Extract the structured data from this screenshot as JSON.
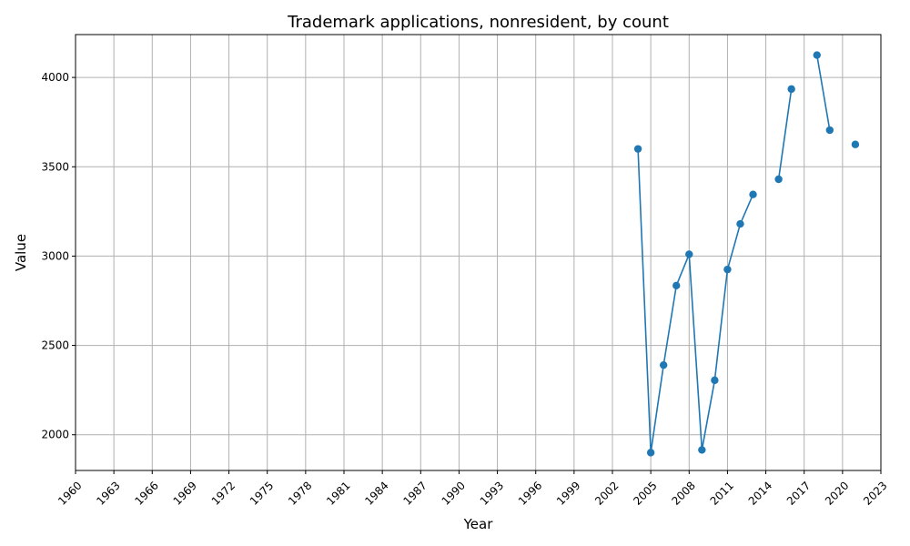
{
  "chart_data": {
    "type": "line",
    "title": "Trademark applications, nonresident, by count",
    "xlabel": "Year",
    "ylabel": "Value",
    "xlim": [
      1960,
      2023
    ],
    "ylim": [
      1800,
      4240
    ],
    "xticks": [
      1960,
      1963,
      1966,
      1969,
      1972,
      1975,
      1978,
      1981,
      1984,
      1987,
      1990,
      1993,
      1996,
      1999,
      2002,
      2005,
      2008,
      2011,
      2014,
      2017,
      2020,
      2023
    ],
    "yticks": [
      2000,
      2500,
      3000,
      3500,
      4000
    ],
    "grid": true,
    "color": "#1f77b4",
    "segments": [
      [
        {
          "x": 2004,
          "y": 3600
        },
        {
          "x": 2005,
          "y": 1900
        },
        {
          "x": 2006,
          "y": 2390
        },
        {
          "x": 2007,
          "y": 2835
        },
        {
          "x": 2008,
          "y": 3010
        },
        {
          "x": 2009,
          "y": 1915
        },
        {
          "x": 2010,
          "y": 2305
        },
        {
          "x": 2011,
          "y": 2925
        },
        {
          "x": 2012,
          "y": 3180
        },
        {
          "x": 2013,
          "y": 3345
        }
      ],
      [
        {
          "x": 2015,
          "y": 3430
        },
        {
          "x": 2016,
          "y": 3935
        }
      ],
      [
        {
          "x": 2018,
          "y": 4125
        },
        {
          "x": 2019,
          "y": 3705
        }
      ],
      [
        {
          "x": 2021,
          "y": 3625
        }
      ]
    ]
  }
}
